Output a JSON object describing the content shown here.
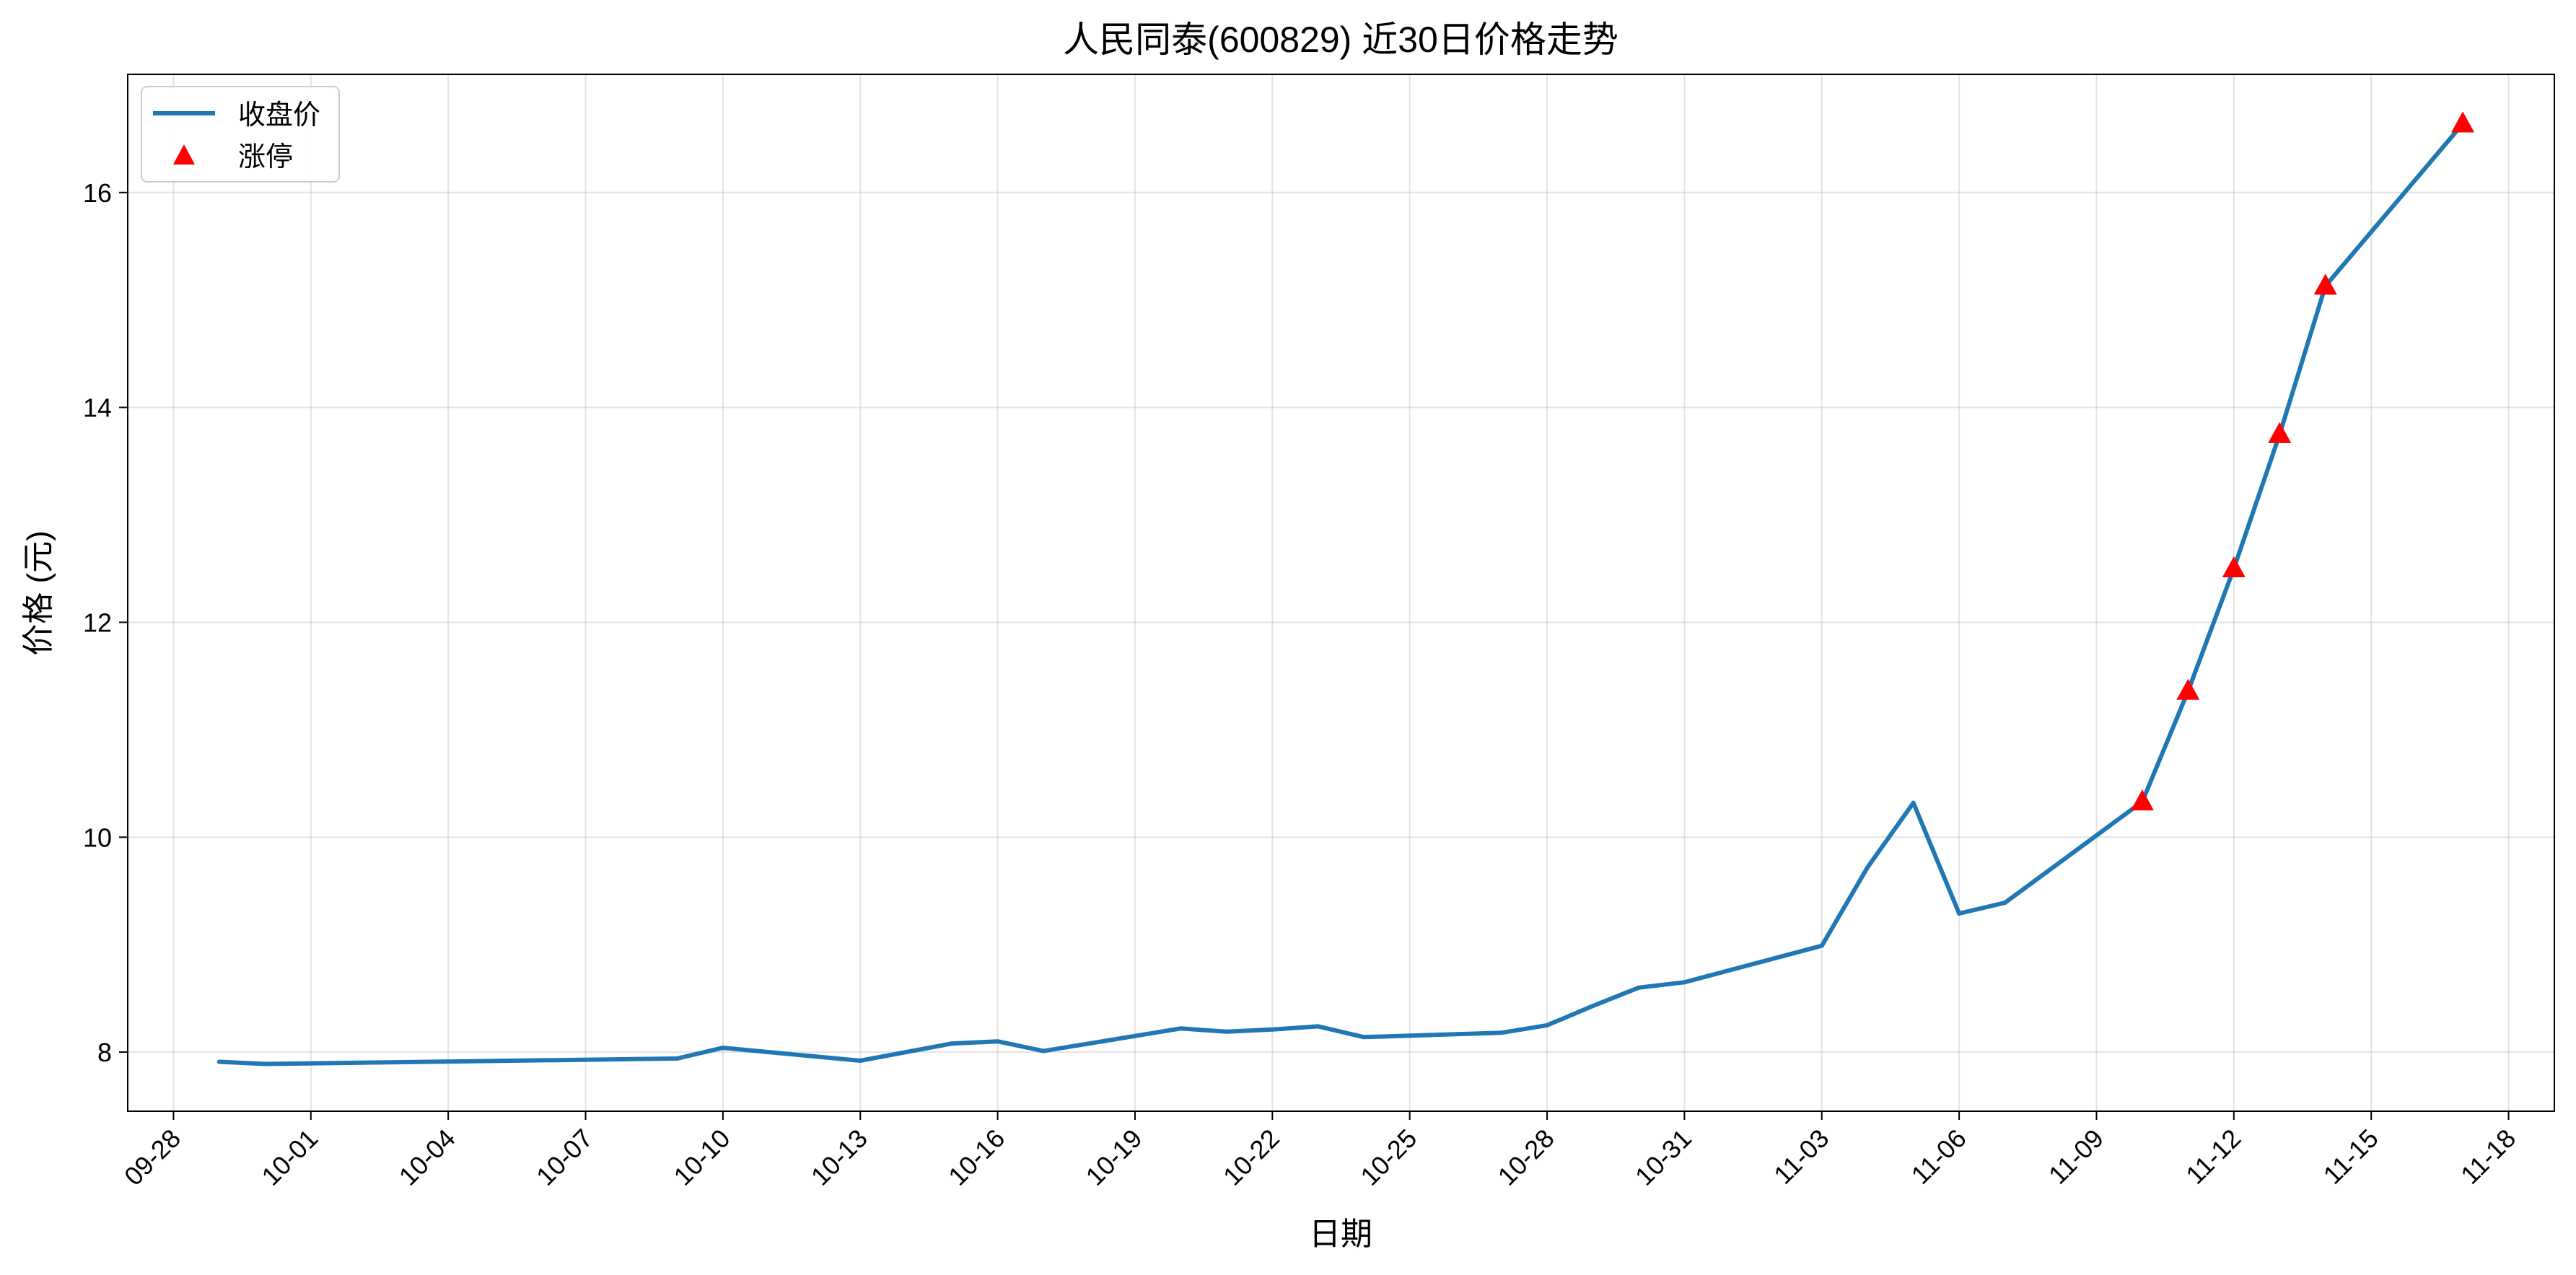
{
  "chart_data": {
    "type": "line",
    "title": "人民同泰(600829) 近30日价格走势",
    "xlabel": "日期",
    "ylabel": "价格 (元)",
    "x_ticks": [
      "09-28",
      "10-01",
      "10-04",
      "10-07",
      "10-10",
      "10-13",
      "10-16",
      "10-19",
      "10-22",
      "10-25",
      "10-28",
      "10-31",
      "11-03",
      "11-06",
      "11-09",
      "11-12",
      "11-15",
      "11-18"
    ],
    "y_ticks": [
      8,
      10,
      12,
      14,
      16
    ],
    "xlim": [
      "2024-09-27",
      "2024-11-19"
    ],
    "ylim": [
      7.45,
      17.1
    ],
    "grid": true,
    "legend_position": "top-left",
    "colors": {
      "line": "#1f77b4",
      "limit_up": "#ff0000"
    },
    "series": [
      {
        "name": "收盘价",
        "kind": "line",
        "x": [
          "2024-09-29",
          "2024-09-30",
          "2024-10-09",
          "2024-10-10",
          "2024-10-13",
          "2024-10-15",
          "2024-10-16",
          "2024-10-17",
          "2024-10-20",
          "2024-10-21",
          "2024-10-22",
          "2024-10-23",
          "2024-10-24",
          "2024-10-27",
          "2024-10-28",
          "2024-10-29",
          "2024-10-30",
          "2024-10-31",
          "2024-11-03",
          "2024-11-04",
          "2024-11-05",
          "2024-11-06",
          "2024-11-07",
          "2024-11-10",
          "2024-11-11",
          "2024-11-12",
          "2024-11-13",
          "2024-11-14",
          "2024-11-17"
        ],
        "y": [
          7.91,
          7.89,
          7.94,
          8.04,
          7.92,
          8.08,
          8.1,
          8.01,
          8.22,
          8.19,
          8.21,
          8.24,
          8.14,
          8.18,
          8.25,
          8.43,
          8.6,
          8.65,
          8.99,
          9.72,
          10.32,
          9.29,
          9.39,
          10.33,
          11.36,
          12.5,
          13.75,
          15.13,
          16.64
        ]
      },
      {
        "name": "涨停",
        "kind": "scatter",
        "marker": "triangle",
        "x": [
          "2024-11-10",
          "2024-11-11",
          "2024-11-12",
          "2024-11-13",
          "2024-11-14",
          "2024-11-17"
        ],
        "y": [
          10.33,
          11.36,
          12.5,
          13.75,
          15.13,
          16.64
        ]
      }
    ]
  }
}
